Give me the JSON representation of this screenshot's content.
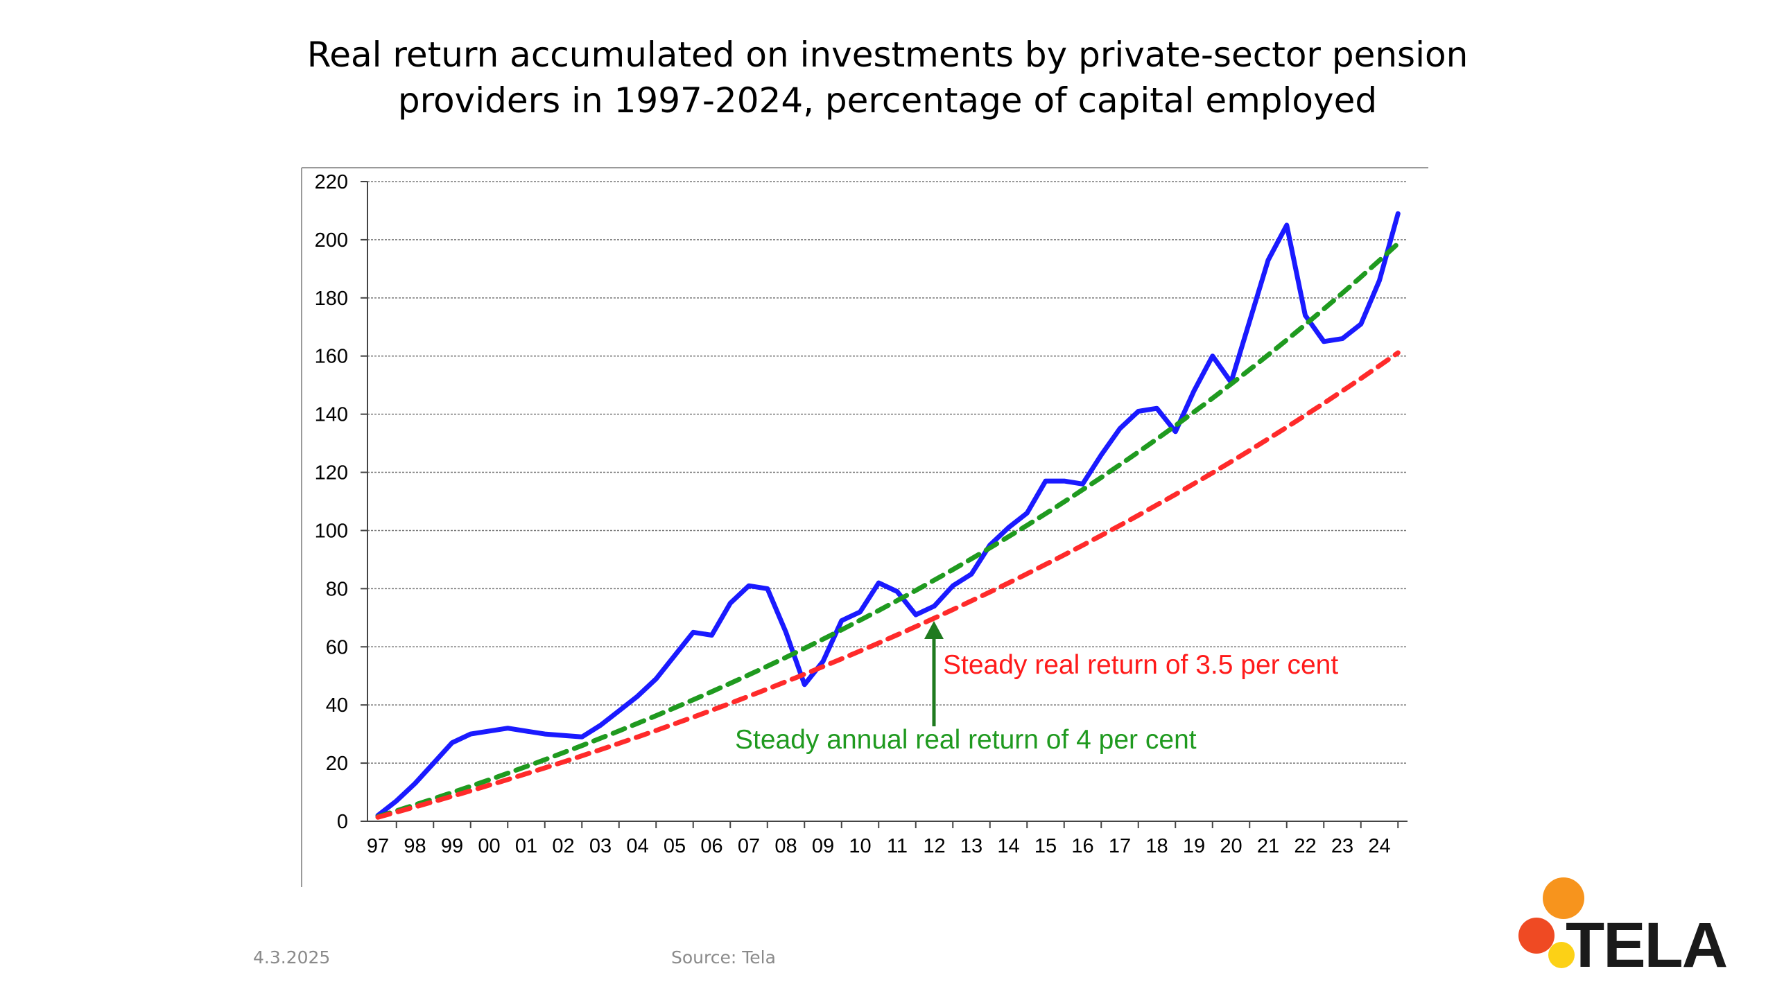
{
  "chart_data": {
    "type": "line",
    "title_lines": [
      "Real return accumulated on investments by private-sector pension",
      "providers in 1997-2024, percentage of capital employed"
    ],
    "x_tick_labels": [
      "97",
      "98",
      "99",
      "00",
      "01",
      "02",
      "03",
      "04",
      "05",
      "06",
      "07",
      "08",
      "09",
      "10",
      "11",
      "12",
      "13",
      "14",
      "15",
      "16",
      "17",
      "18",
      "19",
      "20",
      "21",
      "22",
      "23",
      "24"
    ],
    "y_ticks": [
      0,
      20,
      40,
      60,
      80,
      100,
      120,
      140,
      160,
      180,
      200,
      220
    ],
    "ylim": [
      0,
      220
    ],
    "xlim": [
      1997,
      2024.8
    ],
    "grid": true,
    "series": [
      {
        "key": "actual",
        "color": "#1a1aff",
        "style": "solid",
        "points": [
          [
            1997.0,
            2
          ],
          [
            1997.5,
            7
          ],
          [
            1998.0,
            13
          ],
          [
            1998.5,
            20
          ],
          [
            1999.0,
            27
          ],
          [
            1999.5,
            30
          ],
          [
            2000.5,
            32
          ],
          [
            2001.5,
            30
          ],
          [
            2002.5,
            29
          ],
          [
            2003.0,
            33
          ],
          [
            2003.5,
            38
          ],
          [
            2004.0,
            43
          ],
          [
            2004.5,
            49
          ],
          [
            2005.0,
            57
          ],
          [
            2005.5,
            65
          ],
          [
            2006.0,
            64
          ],
          [
            2006.5,
            75
          ],
          [
            2007.0,
            81
          ],
          [
            2007.5,
            80
          ],
          [
            2008.0,
            65
          ],
          [
            2008.5,
            47
          ],
          [
            2009.0,
            55
          ],
          [
            2009.5,
            69
          ],
          [
            2010.0,
            72
          ],
          [
            2010.5,
            82
          ],
          [
            2011.0,
            79
          ],
          [
            2011.5,
            71
          ],
          [
            2012.0,
            74
          ],
          [
            2012.5,
            81
          ],
          [
            2013.0,
            85
          ],
          [
            2013.5,
            95
          ],
          [
            2014.0,
            101
          ],
          [
            2014.5,
            106
          ],
          [
            2015.0,
            117
          ],
          [
            2015.5,
            117
          ],
          [
            2016.0,
            116
          ],
          [
            2016.5,
            126
          ],
          [
            2017.0,
            135
          ],
          [
            2017.5,
            141
          ],
          [
            2018.0,
            142
          ],
          [
            2018.5,
            134
          ],
          [
            2019.0,
            148
          ],
          [
            2019.5,
            160
          ],
          [
            2020.0,
            151
          ],
          [
            2020.5,
            172
          ],
          [
            2021.0,
            193
          ],
          [
            2021.5,
            205
          ],
          [
            2022.0,
            174
          ],
          [
            2022.5,
            165
          ],
          [
            2023.0,
            166
          ],
          [
            2023.5,
            171
          ],
          [
            2024.0,
            186
          ],
          [
            2024.5,
            209
          ]
        ]
      },
      {
        "key": "steady4",
        "color": "#1f9a1f",
        "style": "dashed",
        "annual_rate": 0.04
      },
      {
        "key": "steady35",
        "color": "#ff2a2a",
        "style": "dashed",
        "annual_rate": 0.035
      }
    ],
    "annotations": [
      {
        "text": "Steady real return of 3.5 per cent",
        "color": "#ff1a1a"
      },
      {
        "text": "Steady annual real return of 4 per cent",
        "color": "#1f9a1f"
      }
    ]
  },
  "footer": {
    "date": "4.3.2025",
    "source": "Source: Tela"
  },
  "logo": {
    "text": "TELA",
    "colors": {
      "orange": "#f7941d",
      "red": "#ef4a23",
      "yellow": "#fcd116"
    }
  }
}
